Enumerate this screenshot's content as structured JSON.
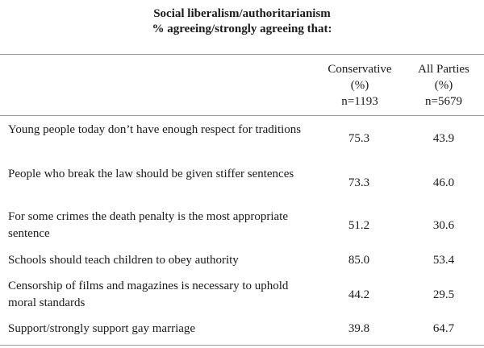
{
  "title": {
    "line1": "Social liberalism/authoritarianism",
    "line2": "% agreeing/strongly agreeing that:"
  },
  "columns": [
    {
      "name": "Conservative",
      "unit": "(%)",
      "n": "n=1193"
    },
    {
      "name": "All Parties",
      "unit": "(%)",
      "n": "n=5679"
    }
  ],
  "rows": [
    {
      "label": "Young people today don’t have enough respect for traditions",
      "conservative": "75.3",
      "all_parties": "43.9"
    },
    {
      "label": "People who break the law should be given stiffer sentences",
      "conservative": "73.3",
      "all_parties": "46.0"
    },
    {
      "label": "For some crimes the death penalty is the most appropriate sentence",
      "conservative": "51.2",
      "all_parties": "30.6"
    },
    {
      "label": "Schools should teach children to obey authority",
      "conservative": "85.0",
      "all_parties": "53.4"
    },
    {
      "label": "Censorship of films and magazines is necessary to uphold moral standards",
      "conservative": "44.2",
      "all_parties": "29.5"
    },
    {
      "label": "Support/strongly support gay marriage",
      "conservative": "39.8",
      "all_parties": "64.7"
    }
  ]
}
